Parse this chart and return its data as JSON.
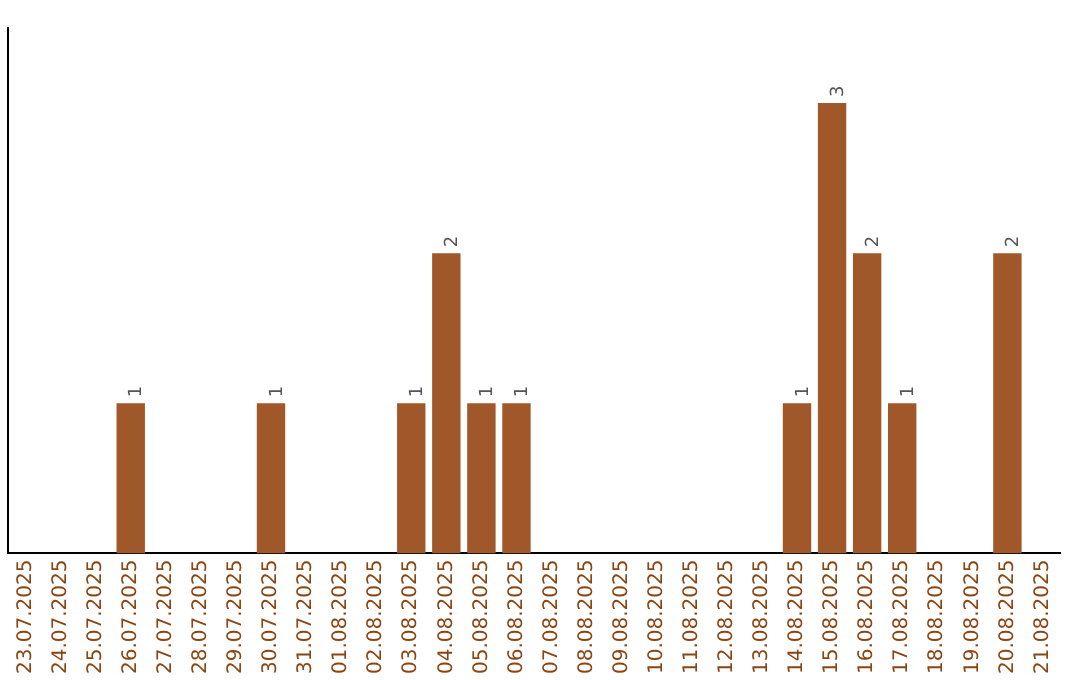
{
  "chart_data": {
    "type": "bar",
    "categories": [
      "23.07.2025",
      "24.07.2025",
      "25.07.2025",
      "26.07.2025",
      "27.07.2025",
      "28.07.2025",
      "29.07.2025",
      "30.07.2025",
      "31.07.2025",
      "01.08.2025",
      "02.08.2025",
      "03.08.2025",
      "04.08.2025",
      "05.08.2025",
      "06.08.2025",
      "07.08.2025",
      "08.08.2025",
      "09.08.2025",
      "10.08.2025",
      "11.08.2025",
      "12.08.2025",
      "13.08.2025",
      "14.08.2025",
      "15.08.2025",
      "16.08.2025",
      "17.08.2025",
      "18.08.2025",
      "19.08.2025",
      "20.08.2025",
      "21.08.2025"
    ],
    "values": [
      0,
      0,
      0,
      1,
      0,
      0,
      0,
      1,
      0,
      0,
      0,
      1,
      2,
      1,
      1,
      0,
      0,
      0,
      0,
      0,
      0,
      0,
      1,
      3,
      2,
      1,
      0,
      0,
      2,
      0
    ],
    "value_labels": [
      null,
      null,
      null,
      "1",
      null,
      null,
      null,
      "1",
      null,
      null,
      null,
      "1",
      "2",
      "1",
      "1",
      null,
      null,
      null,
      null,
      null,
      null,
      null,
      "1",
      "3",
      "2",
      "1",
      null,
      null,
      "2",
      null
    ],
    "color": "#a0572a",
    "grid": false,
    "legend": false,
    "tick_labels": "x"
  }
}
